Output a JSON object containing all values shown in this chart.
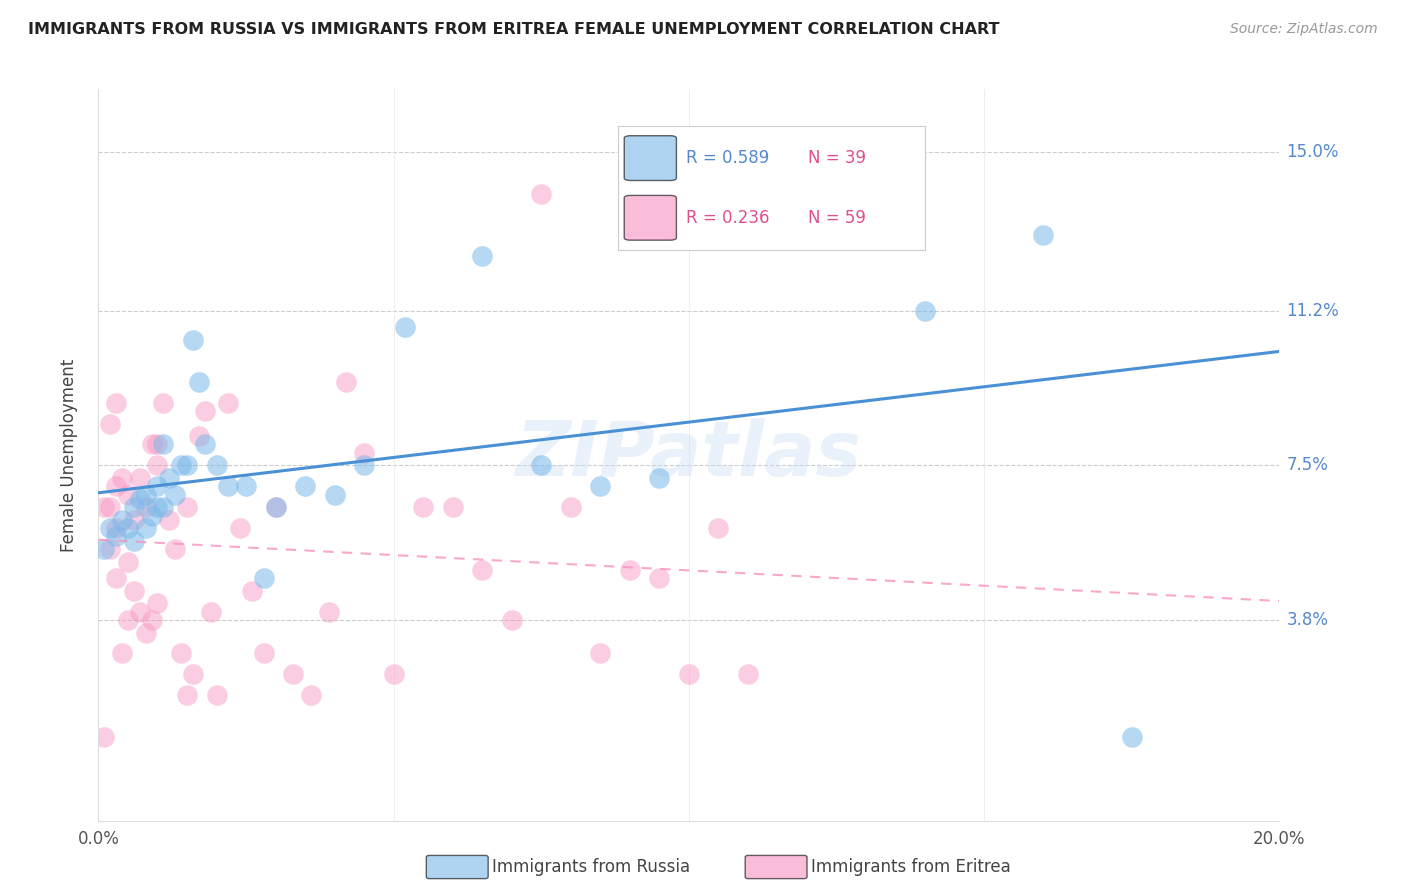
{
  "title": "IMMIGRANTS FROM RUSSIA VS IMMIGRANTS FROM ERITREA FEMALE UNEMPLOYMENT CORRELATION CHART",
  "source": "Source: ZipAtlas.com",
  "ylabel_label": "Female Unemployment",
  "xlim": [
    0.0,
    0.2
  ],
  "ylim": [
    -0.01,
    0.165
  ],
  "ytick_vals": [
    0.15,
    0.112,
    0.075,
    0.038
  ],
  "ytick_labels": [
    "15.0%",
    "11.2%",
    "7.5%",
    "3.8%"
  ],
  "xtick_vals": [
    0.0,
    0.2
  ],
  "xtick_labels": [
    "0.0%",
    "20.0%"
  ],
  "legend_russia_R": "0.589",
  "legend_russia_N": "39",
  "legend_eritrea_R": "0.236",
  "legend_eritrea_N": "59",
  "color_russia": "#7ab8e8",
  "color_eritrea": "#f892c0",
  "color_russia_line": "#4a90d4",
  "color_eritrea_line": "#f892c0",
  "color_ytick": "#5588cc",
  "watermark": "ZIPatlas",
  "russia_x": [
    0.001,
    0.002,
    0.003,
    0.004,
    0.005,
    0.006,
    0.006,
    0.007,
    0.008,
    0.008,
    0.009,
    0.01,
    0.01,
    0.011,
    0.011,
    0.012,
    0.013,
    0.014,
    0.015,
    0.016,
    0.017,
    0.018,
    0.02,
    0.022,
    0.025,
    0.028,
    0.03,
    0.035,
    0.04,
    0.045,
    0.052,
    0.065,
    0.075,
    0.085,
    0.095,
    0.115,
    0.14,
    0.16,
    0.175
  ],
  "russia_y": [
    0.055,
    0.06,
    0.058,
    0.062,
    0.06,
    0.057,
    0.065,
    0.067,
    0.06,
    0.068,
    0.063,
    0.065,
    0.07,
    0.065,
    0.08,
    0.072,
    0.068,
    0.075,
    0.075,
    0.105,
    0.095,
    0.08,
    0.075,
    0.07,
    0.07,
    0.048,
    0.065,
    0.07,
    0.068,
    0.075,
    0.108,
    0.125,
    0.075,
    0.07,
    0.072,
    0.14,
    0.112,
    0.13,
    0.01
  ],
  "eritrea_x": [
    0.001,
    0.001,
    0.002,
    0.002,
    0.003,
    0.003,
    0.003,
    0.004,
    0.004,
    0.005,
    0.005,
    0.005,
    0.006,
    0.006,
    0.007,
    0.007,
    0.008,
    0.008,
    0.009,
    0.009,
    0.01,
    0.01,
    0.011,
    0.012,
    0.013,
    0.014,
    0.015,
    0.016,
    0.017,
    0.018,
    0.019,
    0.02,
    0.022,
    0.024,
    0.026,
    0.028,
    0.03,
    0.033,
    0.036,
    0.039,
    0.042,
    0.045,
    0.05,
    0.055,
    0.06,
    0.065,
    0.07,
    0.075,
    0.08,
    0.085,
    0.09,
    0.095,
    0.1,
    0.105,
    0.11,
    0.002,
    0.003,
    0.01,
    0.015
  ],
  "eritrea_y": [
    0.01,
    0.065,
    0.055,
    0.065,
    0.048,
    0.06,
    0.07,
    0.03,
    0.072,
    0.038,
    0.052,
    0.068,
    0.045,
    0.062,
    0.04,
    0.072,
    0.035,
    0.065,
    0.038,
    0.08,
    0.042,
    0.075,
    0.09,
    0.062,
    0.055,
    0.03,
    0.065,
    0.025,
    0.082,
    0.088,
    0.04,
    0.02,
    0.09,
    0.06,
    0.045,
    0.03,
    0.065,
    0.025,
    0.02,
    0.04,
    0.095,
    0.078,
    0.025,
    0.065,
    0.065,
    0.05,
    0.038,
    0.14,
    0.065,
    0.03,
    0.05,
    0.048,
    0.025,
    0.06,
    0.025,
    0.085,
    0.09,
    0.08,
    0.02
  ]
}
